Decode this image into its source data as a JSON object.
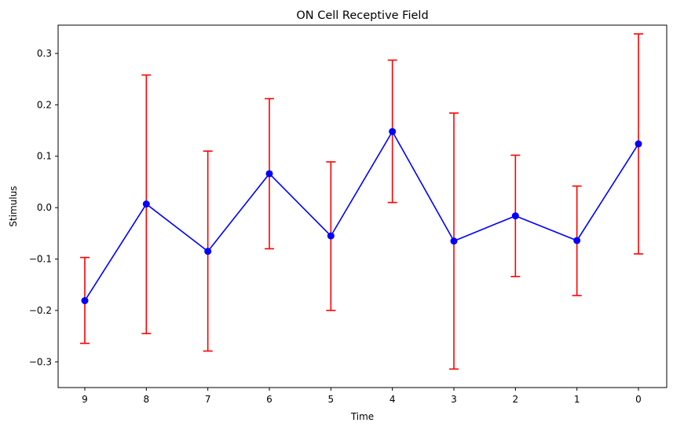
{
  "chart_data": {
    "type": "line",
    "title": "ON Cell Receptive Field",
    "xlabel": "Time",
    "ylabel": "Stimulus",
    "categories": [
      "9",
      "8",
      "7",
      "6",
      "5",
      "4",
      "3",
      "2",
      "1",
      "0"
    ],
    "series": [
      {
        "values": [
          -0.181,
          0.007,
          -0.085,
          0.066,
          -0.055,
          0.148,
          -0.065,
          -0.016,
          -0.064,
          0.124
        ],
        "err_low": [
          -0.264,
          -0.245,
          -0.279,
          -0.08,
          -0.2,
          0.01,
          -0.314,
          -0.134,
          -0.171,
          -0.09
        ],
        "err_high": [
          -0.097,
          0.258,
          0.11,
          0.212,
          0.089,
          0.287,
          0.184,
          0.102,
          0.042,
          0.338
        ],
        "line_color": "#0000ff",
        "marker_color": "#0000ff",
        "error_color": "#ff0000"
      }
    ],
    "yticks": [
      -0.3,
      -0.2,
      -0.1,
      0.0,
      0.1,
      0.2,
      0.3
    ],
    "ytick_labels": [
      "−0.3",
      "−0.2",
      "−0.1",
      "0.0",
      "0.1",
      "0.2",
      "0.3"
    ],
    "ylim": [
      -0.35,
      0.355
    ],
    "grid": false,
    "legend": "none"
  }
}
